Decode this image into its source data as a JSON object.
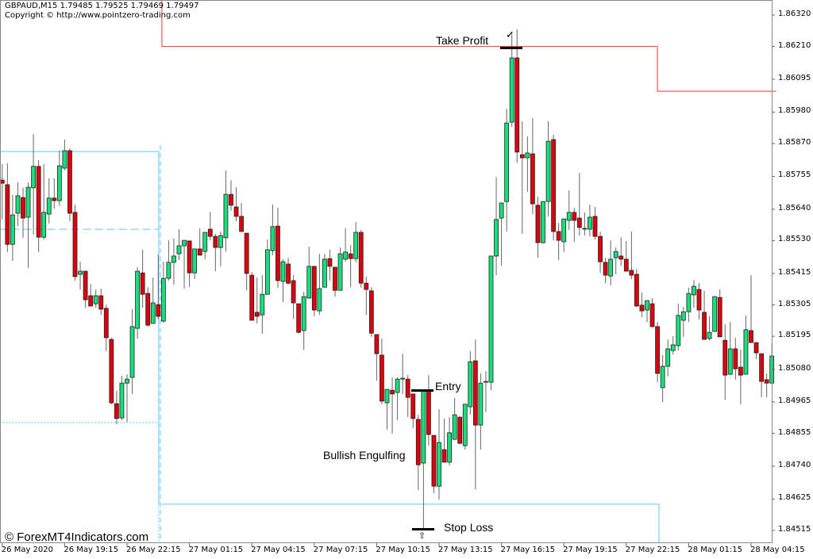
{
  "header": {
    "symbol_line": "GBPAUD,M15  1.79485 1.79525 1.79469 1.79497",
    "copyright": "Copyright © http://www.pointzero-trading.com"
  },
  "watermark": "© ForexMT4Indicators.com",
  "annotations": {
    "take_profit": "Take Profit",
    "take_profit_icon": "check-mark",
    "entry": "Entry",
    "pattern": "Bullish Engulfing",
    "stop_loss": "Stop Loss",
    "stop_loss_icon": "up-arrow"
  },
  "colors": {
    "bull": "#16e07c",
    "bear": "#e0000b",
    "tp_line": "#ff3030",
    "level_line": "#5bc8f5"
  },
  "chart_data": {
    "type": "candlestick",
    "ylim": [
      1.8448,
      1.8637
    ],
    "grid": false,
    "y_ticks": [
      "1.86320",
      "1.86210",
      "1.86095",
      "1.85980",
      "1.85870",
      "1.85755",
      "1.85640",
      "1.85530",
      "1.85415",
      "1.85305",
      "1.85195",
      "1.85080",
      "1.84965",
      "1.84855",
      "1.84740",
      "1.84625",
      "1.84515"
    ],
    "x_ticks": [
      {
        "bar": 0,
        "label": "26 May 2020"
      },
      {
        "bar": 12,
        "label": "26 May 19:15"
      },
      {
        "bar": 24,
        "label": "26 May 22:15"
      },
      {
        "bar": 36,
        "label": "27 May 01:15"
      },
      {
        "bar": 48,
        "label": "27 May 04:15"
      },
      {
        "bar": 60,
        "label": "27 May 07:15"
      },
      {
        "bar": 72,
        "label": "27 May 10:15"
      },
      {
        "bar": 84,
        "label": "27 May 13:15"
      },
      {
        "bar": 96,
        "label": "27 May 16:15"
      },
      {
        "bar": 108,
        "label": "27 May 19:15"
      },
      {
        "bar": 120,
        "label": "27 May 22:15"
      },
      {
        "bar": 132,
        "label": "28 May 01:15"
      },
      {
        "bar": 144,
        "label": "28 May 04:15"
      }
    ],
    "ohlc_columns": [
      "open",
      "high",
      "low",
      "close"
    ],
    "candles": [
      [
        1.85742,
        1.85798,
        1.85604,
        1.85731
      ],
      [
        1.85726,
        1.85801,
        1.8549,
        1.85517
      ],
      [
        1.85517,
        1.8569,
        1.85459,
        1.8562
      ],
      [
        1.85626,
        1.85734,
        1.85581,
        1.85687
      ],
      [
        1.85681,
        1.85715,
        1.8554,
        1.85609
      ],
      [
        1.85612,
        1.85734,
        1.85434,
        1.85717
      ],
      [
        1.85715,
        1.85903,
        1.85551,
        1.8579
      ],
      [
        1.8579,
        1.85812,
        1.8549,
        1.85542
      ],
      [
        1.85542,
        1.85798,
        1.85534,
        1.85629
      ],
      [
        1.85623,
        1.85748,
        1.8559,
        1.85679
      ],
      [
        1.85679,
        1.85748,
        1.85642,
        1.8567
      ],
      [
        1.8567,
        1.85845,
        1.85651,
        1.85792
      ],
      [
        1.85784,
        1.85884,
        1.85776,
        1.85845
      ],
      [
        1.85845,
        1.85853,
        1.85598,
        1.85626
      ],
      [
        1.85629,
        1.85656,
        1.8539,
        1.85404
      ],
      [
        1.85412,
        1.85456,
        1.85359,
        1.85423
      ],
      [
        1.85423,
        1.85423,
        1.85295,
        1.85323
      ],
      [
        1.85337,
        1.85379,
        1.85301,
        1.85301
      ],
      [
        1.85309,
        1.85359,
        1.85295,
        1.85337
      ],
      [
        1.85337,
        1.85362,
        1.8527,
        1.8529
      ],
      [
        1.85293,
        1.85306,
        1.85143,
        1.8519
      ],
      [
        1.85184,
        1.8519,
        1.84957,
        1.84962
      ],
      [
        1.84959,
        1.85004,
        1.84887,
        1.84907
      ],
      [
        1.84909,
        1.85056,
        1.84901,
        1.85031
      ],
      [
        1.85031,
        1.85062,
        1.84895,
        1.85045
      ],
      [
        1.85051,
        1.8529,
        1.84993,
        1.85229
      ],
      [
        1.85223,
        1.85437,
        1.85187,
        1.85423
      ],
      [
        1.85417,
        1.85498,
        1.85295,
        1.85342
      ],
      [
        1.85345,
        1.85367,
        1.85229,
        1.85234
      ],
      [
        1.8524,
        1.85401,
        1.8524,
        1.85312
      ],
      [
        1.85306,
        1.85481,
        1.85254,
        1.85265
      ],
      [
        1.85248,
        1.85456,
        1.85243,
        1.85398
      ],
      [
        1.85398,
        1.85531,
        1.8539,
        1.85454
      ],
      [
        1.85454,
        1.85537,
        1.85376,
        1.85476
      ],
      [
        1.85484,
        1.8557,
        1.85462,
        1.85512
      ],
      [
        1.85512,
        1.85531,
        1.85362,
        1.85531
      ],
      [
        1.85529,
        1.85529,
        1.85367,
        1.85417
      ],
      [
        1.85417,
        1.85501,
        1.85395,
        1.85501
      ],
      [
        1.85501,
        1.85573,
        1.85479,
        1.85479
      ],
      [
        1.85492,
        1.85559,
        1.85465,
        1.85559
      ],
      [
        1.8557,
        1.85631,
        1.85531,
        1.85545
      ],
      [
        1.85545,
        1.85554,
        1.85423,
        1.85506
      ],
      [
        1.85506,
        1.85562,
        1.8544,
        1.85548
      ],
      [
        1.8554,
        1.85776,
        1.85492,
        1.85692
      ],
      [
        1.85692,
        1.85742,
        1.85634,
        1.85654
      ],
      [
        1.85648,
        1.85717,
        1.85598,
        1.85615
      ],
      [
        1.85615,
        1.85662,
        1.85562,
        1.85562
      ],
      [
        1.85556,
        1.85556,
        1.85356,
        1.85415
      ],
      [
        1.85409,
        1.8542,
        1.85251,
        1.85251
      ],
      [
        1.85279,
        1.85401,
        1.8524,
        1.85265
      ],
      [
        1.8527,
        1.85409,
        1.85204,
        1.85342
      ],
      [
        1.85342,
        1.85534,
        1.85342,
        1.85498
      ],
      [
        1.85495,
        1.85656,
        1.85479,
        1.85579
      ],
      [
        1.85581,
        1.85645,
        1.85365,
        1.8539
      ],
      [
        1.85387,
        1.85465,
        1.85315,
        1.85456
      ],
      [
        1.85448,
        1.8547,
        1.85376,
        1.85381
      ],
      [
        1.8539,
        1.85409,
        1.85256,
        1.85312
      ],
      [
        1.85309,
        1.85309,
        1.85204,
        1.85209
      ],
      [
        1.85215,
        1.85351,
        1.85148,
        1.85334
      ],
      [
        1.85329,
        1.85509,
        1.85326,
        1.8544
      ],
      [
        1.8544,
        1.8544,
        1.85265,
        1.85287
      ],
      [
        1.85284,
        1.85484,
        1.8527,
        1.85362
      ],
      [
        1.85367,
        1.85484,
        1.85367,
        1.85465
      ],
      [
        1.85467,
        1.85498,
        1.8539,
        1.8544
      ],
      [
        1.85437,
        1.85437,
        1.85334,
        1.85356
      ],
      [
        1.85356,
        1.85506,
        1.85356,
        1.85484
      ],
      [
        1.85465,
        1.85573,
        1.85456,
        1.8549
      ],
      [
        1.85484,
        1.85515,
        1.85367,
        1.85467
      ],
      [
        1.85467,
        1.85595,
        1.85454,
        1.85559
      ],
      [
        1.85559,
        1.85567,
        1.85365,
        1.85381
      ],
      [
        1.85381,
        1.85404,
        1.8527,
        1.85359
      ],
      [
        1.85354,
        1.85367,
        1.85193,
        1.85206
      ],
      [
        1.85201,
        1.85201,
        1.8504,
        1.85134
      ],
      [
        1.85129,
        1.85187,
        1.84957,
        1.84968
      ],
      [
        1.84962,
        1.85009,
        1.84868,
        1.85009
      ],
      [
        1.85006,
        1.85051,
        1.84854,
        1.84993
      ],
      [
        1.84998,
        1.85051,
        1.84901,
        1.85045
      ],
      [
        1.85045,
        1.85134,
        1.84993,
        1.85048
      ],
      [
        1.85045,
        1.85059,
        1.84912,
        1.84981
      ],
      [
        1.84993,
        1.84993,
        1.84873,
        1.84907
      ],
      [
        1.84904,
        1.8492,
        1.84657,
        1.84745
      ],
      [
        1.84751,
        1.85004,
        1.84518,
        1.85004
      ],
      [
        1.85004,
        1.85059,
        1.84812,
        1.84851
      ],
      [
        1.84848,
        1.84848,
        1.84645,
        1.8467
      ],
      [
        1.8467,
        1.8494,
        1.84623,
        1.84823
      ],
      [
        1.84798,
        1.84907,
        1.84754,
        1.84754
      ],
      [
        1.84754,
        1.84912,
        1.84743,
        1.84857
      ],
      [
        1.84834,
        1.84979,
        1.84834,
        1.8492
      ],
      [
        1.84912,
        1.84912,
        1.84818,
        1.8482
      ],
      [
        1.84812,
        1.84957,
        1.84798,
        1.84957
      ],
      [
        1.84948,
        1.85143,
        1.8492,
        1.85106
      ],
      [
        1.85109,
        1.85184,
        1.84659,
        1.84884
      ],
      [
        1.84884,
        1.85065,
        1.84798,
        1.85031
      ],
      [
        1.85034,
        1.85073,
        1.84929,
        1.85037
      ],
      [
        1.85034,
        1.85476,
        1.85006,
        1.85476
      ],
      [
        1.85476,
        1.85753,
        1.85409,
        1.85604
      ],
      [
        1.85609,
        1.85662,
        1.85442,
        1.85662
      ],
      [
        1.85667,
        1.85992,
        1.85562,
        1.85942
      ],
      [
        1.85945,
        1.86262,
        1.85928,
        1.8617
      ],
      [
        1.8617,
        1.8627,
        1.85803,
        1.8584
      ],
      [
        1.85831,
        1.85948,
        1.85554,
        1.8582
      ],
      [
        1.8582,
        1.85895,
        1.85701,
        1.85837
      ],
      [
        1.85834,
        1.85959,
        1.85623,
        1.85659
      ],
      [
        1.85654,
        1.85684,
        1.8547,
        1.85523
      ],
      [
        1.85523,
        1.85667,
        1.8552,
        1.85667
      ],
      [
        1.85667,
        1.85948,
        1.85615,
        1.85878
      ],
      [
        1.85884,
        1.85901,
        1.85531,
        1.85562
      ],
      [
        1.85562,
        1.85592,
        1.85462,
        1.85531
      ],
      [
        1.85526,
        1.85606,
        1.8549,
        1.85606
      ],
      [
        1.85601,
        1.85706,
        1.85567,
        1.85629
      ],
      [
        1.85629,
        1.85645,
        1.85526,
        1.85601
      ],
      [
        1.85609,
        1.85767,
        1.85548,
        1.85576
      ],
      [
        1.85573,
        1.85629,
        1.85548,
        1.85573
      ],
      [
        1.8557,
        1.85656,
        1.85545,
        1.85612
      ],
      [
        1.85615,
        1.85648,
        1.85534,
        1.85545
      ],
      [
        1.85545,
        1.85562,
        1.85417,
        1.85456
      ],
      [
        1.85454,
        1.8547,
        1.85381,
        1.85409
      ],
      [
        1.85406,
        1.85531,
        1.85373,
        1.85465
      ],
      [
        1.8547,
        1.85506,
        1.85412,
        1.85492
      ],
      [
        1.85476,
        1.85542,
        1.85442,
        1.85465
      ],
      [
        1.85465,
        1.85529,
        1.85423,
        1.85423
      ],
      [
        1.85426,
        1.85562,
        1.85395,
        1.85409
      ],
      [
        1.85412,
        1.85431,
        1.85298,
        1.85301
      ],
      [
        1.85304,
        1.85348,
        1.85262,
        1.85284
      ],
      [
        1.85287,
        1.8532,
        1.85245,
        1.8532
      ],
      [
        1.85309,
        1.85329,
        1.85226,
        1.85229
      ],
      [
        1.85229,
        1.85245,
        1.85034,
        1.85065
      ],
      [
        1.85015,
        1.85129,
        1.84965,
        1.8509
      ],
      [
        1.8509,
        1.85184,
        1.85054,
        1.85151
      ],
      [
        1.85145,
        1.85195,
        1.85131,
        1.85165
      ],
      [
        1.85162,
        1.85309,
        1.85145,
        1.85268
      ],
      [
        1.85251,
        1.85298,
        1.85193,
        1.85281
      ],
      [
        1.85281,
        1.85365,
        1.85245,
        1.85345
      ],
      [
        1.8534,
        1.85392,
        1.85295,
        1.8537
      ],
      [
        1.85359,
        1.85381,
        1.85254,
        1.85287
      ],
      [
        1.85279,
        1.85354,
        1.85184,
        1.85184
      ],
      [
        1.85187,
        1.85265,
        1.85181,
        1.85209
      ],
      [
        1.85212,
        1.85334,
        1.85212,
        1.85334
      ],
      [
        1.85331,
        1.85359,
        1.85193,
        1.85193
      ],
      [
        1.85181,
        1.85237,
        1.84973,
        1.85059
      ],
      [
        1.85062,
        1.85245,
        1.85059,
        1.85151
      ],
      [
        1.85151,
        1.8519,
        1.85043,
        1.85081
      ],
      [
        1.85087,
        1.85148,
        1.84957,
        1.85059
      ],
      [
        1.85062,
        1.85268,
        1.85062,
        1.85218
      ],
      [
        1.85215,
        1.85409,
        1.85173,
        1.85173
      ],
      [
        1.85173,
        1.85173,
        1.85115,
        1.85137
      ],
      [
        1.85134,
        1.85134,
        1.84981,
        1.85037
      ],
      [
        1.85043,
        1.85065,
        1.84981,
        1.85031
      ],
      [
        1.85031,
        1.8517,
        1.85031,
        1.85126
      ]
    ],
    "levels": {
      "take_profit_line": [
        {
          "price": 1.8621,
          "from_bar": 30.7,
          "to_bar": 126.0
        },
        {
          "price": 1.86053,
          "from_bar": 126.0,
          "to_bar": 148.8
        }
      ],
      "support_line": [
        {
          "price": 1.85842,
          "from_bar": -0.5,
          "to_bar": 30.1
        },
        {
          "price": 1.84607,
          "from_bar": 30.7,
          "to_bar": 126.3
        }
      ],
      "dashed_line": {
        "price": 1.8557,
        "from_bar": -0.5,
        "to_bar": 30.1
      },
      "dotted_line": {
        "price": 1.84893,
        "from_bar": -0.5,
        "to_bar": 30.1
      },
      "entry_price": 1.85004,
      "take_profit_price": 1.8621,
      "stop_loss_price": 1.84518
    }
  }
}
